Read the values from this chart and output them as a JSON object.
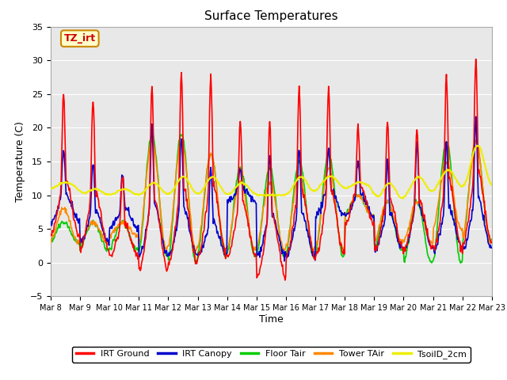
{
  "title": "Surface Temperatures",
  "xlabel": "Time",
  "ylabel": "Temperature (C)",
  "ylim": [
    -5,
    35
  ],
  "annotation_text": "TZ_irt",
  "background_color": "#e8e8e8",
  "grid_color": "white",
  "legend_labels": [
    "IRT Ground",
    "IRT Canopy",
    "Floor Tair",
    "Tower TAir",
    "TsoilD_2cm"
  ],
  "line_colors": [
    "#ff0000",
    "#0000cc",
    "#00cc00",
    "#ff8800",
    "#eeee00"
  ],
  "line_widths": [
    1.2,
    1.2,
    1.2,
    1.2,
    1.5
  ],
  "xtick_labels": [
    "Mar 8",
    "Mar 9",
    "Mar 10",
    "Mar 11",
    "Mar 12",
    "Mar 13",
    "Mar 14",
    "Mar 15",
    "Mar 16",
    "Mar 17",
    "Mar 18",
    "Mar 19",
    "Mar 20",
    "Mar 21",
    "Mar 22",
    "Mar 23"
  ],
  "num_days": 15,
  "pts_per_day": 48,
  "series": {
    "irt_ground": {
      "daily_peaks": [
        25,
        24,
        13,
        26,
        28,
        28,
        21,
        21,
        26,
        26,
        20,
        21,
        20,
        28,
        30
      ],
      "daily_mins": [
        4,
        2,
        1,
        -1,
        0,
        1,
        1,
        -2,
        1,
        1,
        6,
        2,
        2,
        2,
        3
      ]
    },
    "irt_canopy": {
      "daily_peaks": [
        17,
        15,
        13,
        20,
        19,
        14,
        14,
        16,
        17,
        17,
        15,
        15,
        18,
        18,
        21
      ],
      "daily_mins": [
        6,
        3,
        5,
        1,
        1,
        1,
        9,
        1,
        1,
        7,
        7,
        2,
        2,
        2,
        2
      ]
    },
    "floor_tair": {
      "daily_peaks": [
        6,
        6,
        6,
        19,
        19,
        16,
        14,
        14,
        15,
        16,
        10,
        9,
        9,
        18,
        18
      ],
      "daily_mins": [
        3,
        2,
        2,
        1,
        0,
        1,
        1,
        1,
        1,
        1,
        7,
        2,
        0,
        0,
        3
      ]
    },
    "tower_tair": {
      "daily_peaks": [
        8,
        6,
        6,
        18,
        18,
        16,
        12,
        12,
        13,
        14,
        10,
        9,
        9,
        15,
        18
      ],
      "daily_mins": [
        3,
        3,
        4,
        2,
        2,
        2,
        2,
        2,
        2,
        2,
        7,
        3,
        3,
        5,
        3
      ]
    },
    "tsoild_2cm": {
      "daily_peaks": [
        12,
        11,
        11,
        12,
        13,
        13,
        12,
        10,
        13,
        13,
        12,
        12,
        13,
        14,
        18
      ],
      "daily_mins": [
        11,
        10,
        10,
        10,
        10,
        10,
        10,
        10,
        10,
        11,
        11,
        9,
        10,
        11,
        11
      ]
    }
  }
}
